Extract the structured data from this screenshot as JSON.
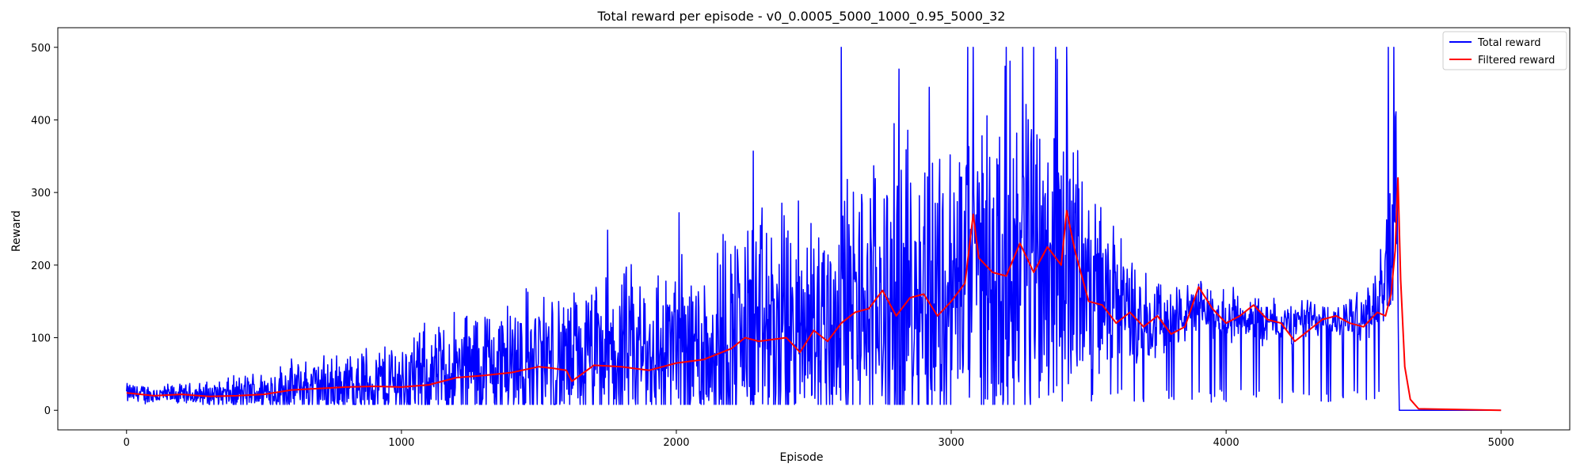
{
  "chart_data": {
    "type": "line",
    "title": "Total reward per episode - v0_0.0005_5000_1000_0.95_5000_32",
    "xlabel": "Episode",
    "ylabel": "Reward",
    "xlim": [
      -250,
      5250
    ],
    "ylim": [
      -27,
      527
    ],
    "xticks": [
      0,
      1000,
      2000,
      3000,
      4000,
      5000
    ],
    "yticks": [
      0,
      100,
      200,
      300,
      400,
      500
    ],
    "grid": false,
    "legend_position": "top-right",
    "legend": [
      "Total reward",
      "Filtered reward"
    ],
    "series": [
      {
        "name": "Total reward",
        "color": "#0000ff",
        "description": "noisy per-episode reward",
        "x": [
          0,
          100,
          200,
          300,
          400,
          500,
          600,
          700,
          800,
          900,
          1000,
          1100,
          1200,
          1300,
          1400,
          1500,
          1600,
          1700,
          1800,
          1900,
          2000,
          2100,
          2200,
          2300,
          2400,
          2500,
          2600,
          2700,
          2800,
          2900,
          3000,
          3100,
          3200,
          3300,
          3400,
          3500,
          3600,
          3700,
          3800,
          3900,
          4000,
          4100,
          4200,
          4300,
          4400,
          4500,
          4560,
          4600,
          4620,
          4630,
          4640,
          5000
        ],
        "center": [
          22,
          20,
          20,
          20,
          20,
          24,
          28,
          28,
          30,
          32,
          35,
          40,
          45,
          50,
          55,
          60,
          55,
          60,
          65,
          70,
          70,
          80,
          90,
          95,
          95,
          100,
          110,
          120,
          130,
          140,
          145,
          170,
          180,
          190,
          200,
          160,
          140,
          125,
          120,
          135,
          130,
          125,
          115,
          125,
          120,
          130,
          150,
          210,
          280,
          0,
          0,
          0
        ],
        "spread": [
          12,
          12,
          12,
          15,
          20,
          25,
          30,
          35,
          40,
          45,
          50,
          60,
          70,
          75,
          80,
          85,
          80,
          85,
          95,
          100,
          110,
          120,
          130,
          140,
          140,
          150,
          160,
          170,
          180,
          180,
          190,
          200,
          210,
          210,
          200,
          120,
          80,
          60,
          40,
          30,
          30,
          30,
          25,
          25,
          20,
          30,
          60,
          120,
          150,
          0,
          0,
          0
        ],
        "spikes": [
          [
            2600,
            500
          ],
          [
            2810,
            470
          ],
          [
            2920,
            445
          ],
          [
            3060,
            500
          ],
          [
            3080,
            500
          ],
          [
            3200,
            500
          ],
          [
            3260,
            500
          ],
          [
            3300,
            500
          ],
          [
            3380,
            500
          ],
          [
            3420,
            500
          ],
          [
            2280,
            357
          ],
          [
            1750,
            248
          ],
          [
            2010,
            272
          ],
          [
            4590,
            500
          ],
          [
            4610,
            500
          ]
        ]
      },
      {
        "name": "Filtered reward",
        "color": "#ff0000",
        "x": [
          0,
          100,
          200,
          300,
          400,
          500,
          600,
          700,
          800,
          900,
          1000,
          1100,
          1200,
          1300,
          1400,
          1500,
          1550,
          1600,
          1620,
          1700,
          1800,
          1900,
          2000,
          2100,
          2200,
          2250,
          2300,
          2400,
          2450,
          2500,
          2550,
          2600,
          2650,
          2700,
          2750,
          2800,
          2850,
          2900,
          2950,
          3000,
          3050,
          3080,
          3100,
          3150,
          3200,
          3250,
          3300,
          3350,
          3400,
          3420,
          3450,
          3500,
          3550,
          3600,
          3650,
          3700,
          3750,
          3800,
          3850,
          3900,
          3950,
          4000,
          4050,
          4100,
          4150,
          4200,
          4250,
          4300,
          4350,
          4400,
          4450,
          4500,
          4550,
          4580,
          4600,
          4615,
          4620,
          4625,
          4635,
          4650,
          4670,
          4700,
          5000
        ],
        "y": [
          24,
          20,
          22,
          19,
          20,
          22,
          28,
          30,
          32,
          33,
          32,
          35,
          45,
          48,
          52,
          60,
          58,
          55,
          40,
          62,
          60,
          55,
          65,
          70,
          85,
          100,
          95,
          100,
          80,
          110,
          95,
          120,
          135,
          140,
          165,
          130,
          155,
          160,
          130,
          150,
          175,
          270,
          210,
          190,
          185,
          230,
          190,
          225,
          200,
          275,
          220,
          150,
          145,
          120,
          135,
          115,
          130,
          105,
          115,
          170,
          140,
          120,
          130,
          145,
          125,
          120,
          95,
          110,
          125,
          130,
          120,
          115,
          135,
          130,
          160,
          220,
          270,
          320,
          180,
          60,
          15,
          2,
          0
        ]
      }
    ]
  }
}
